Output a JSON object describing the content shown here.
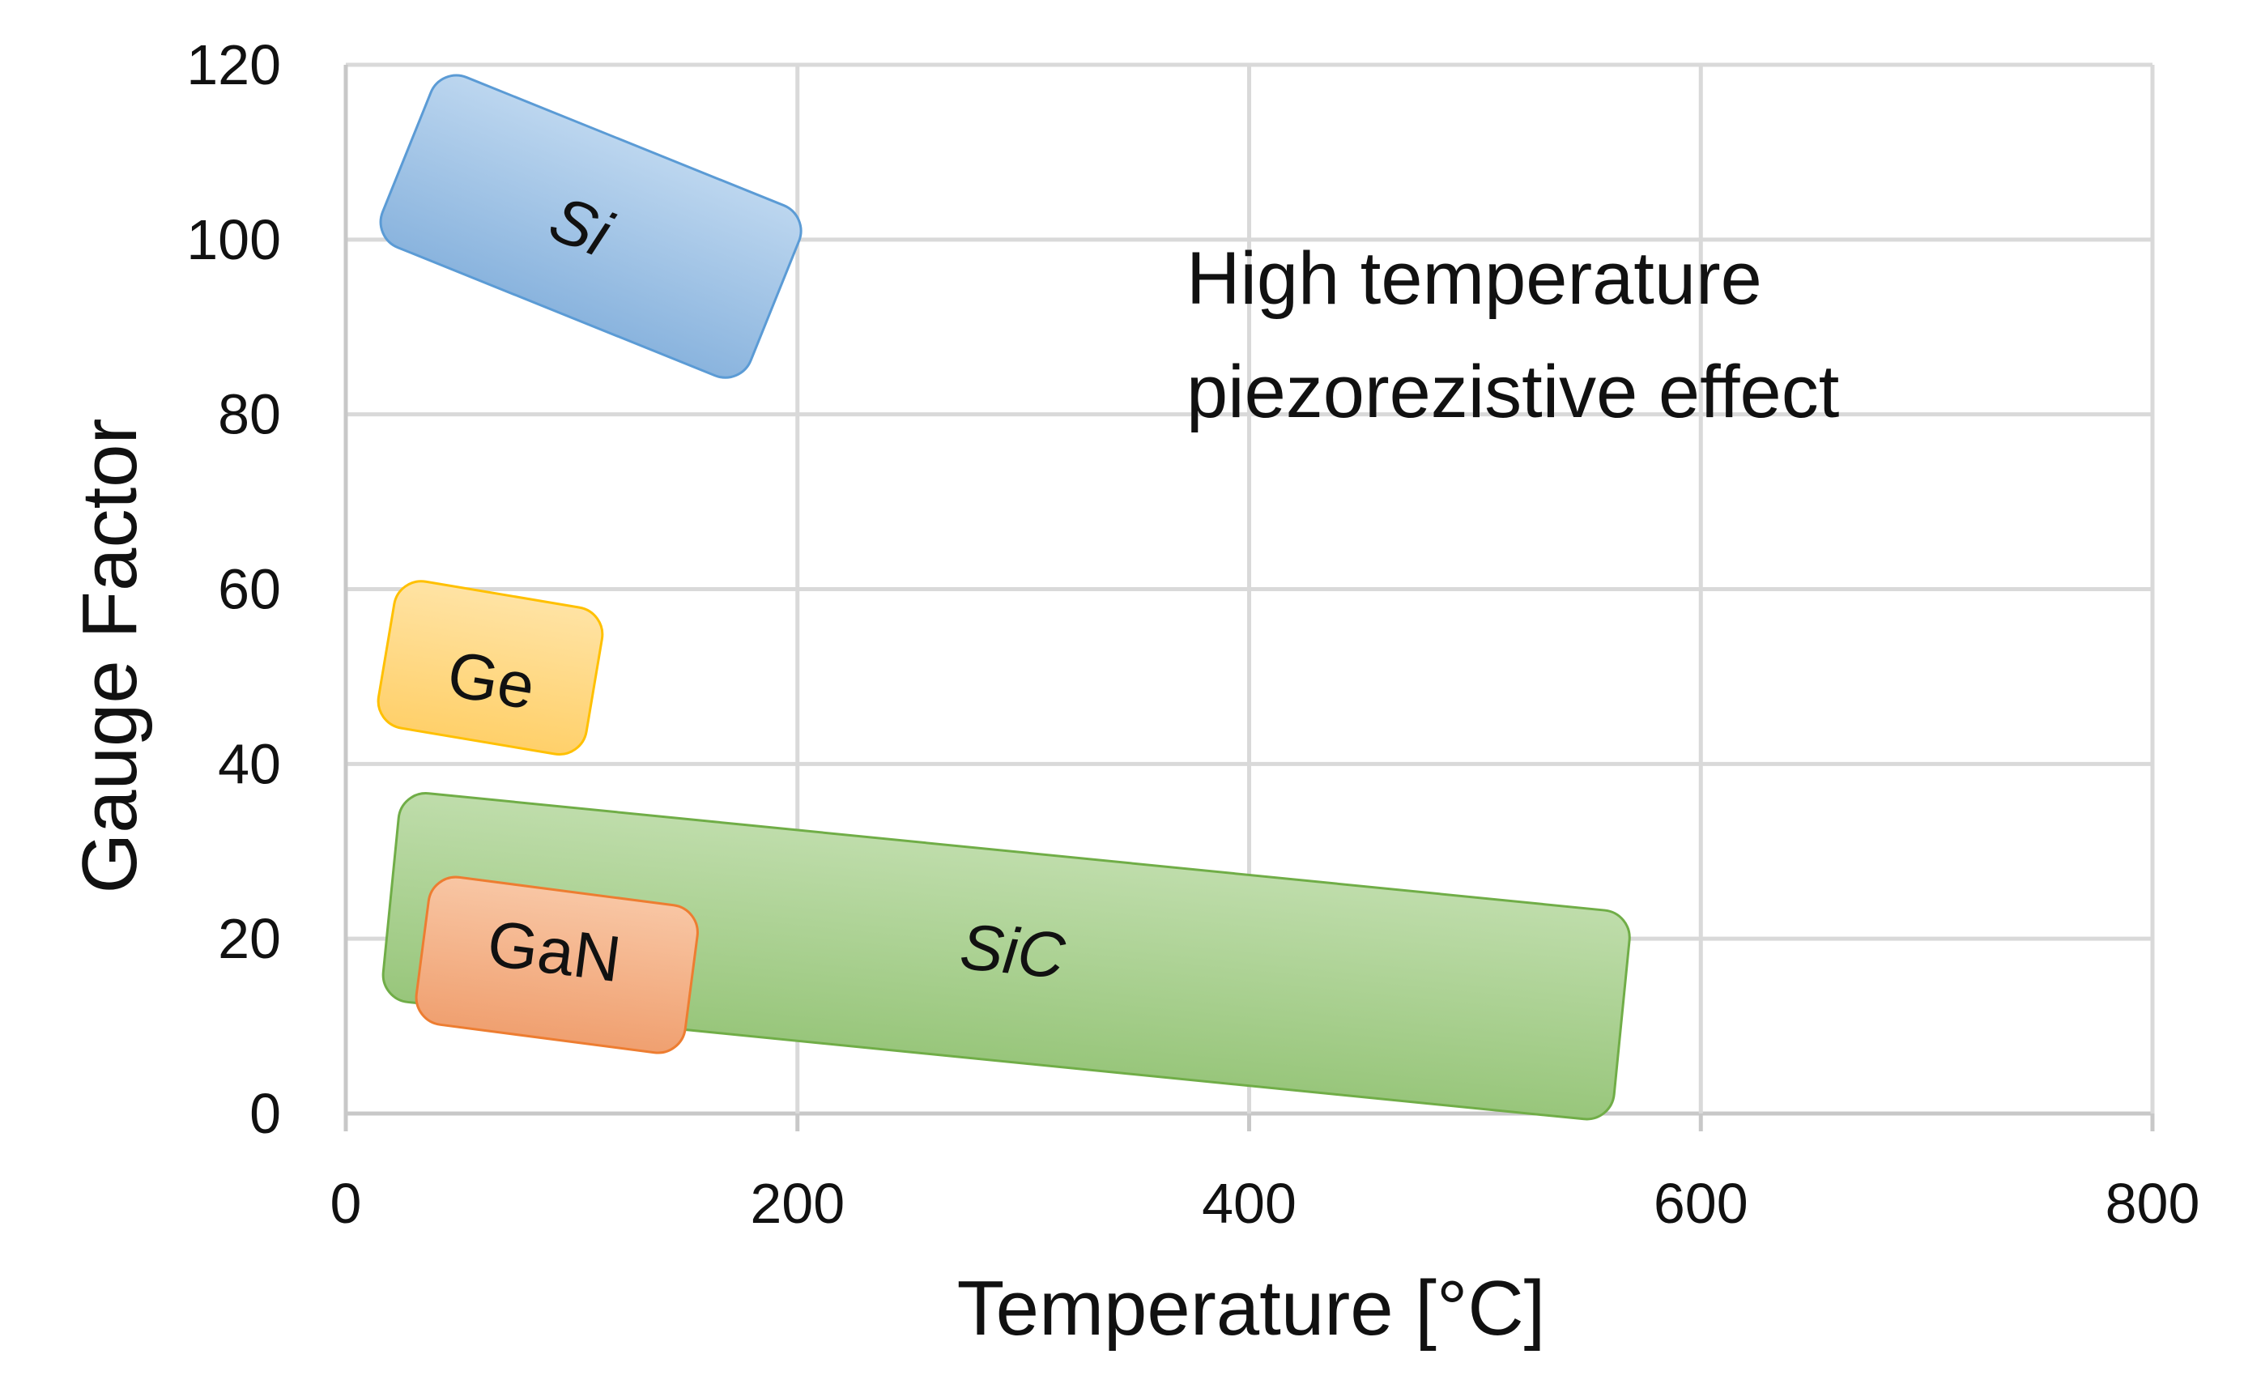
{
  "chart_data": {
    "type": "scatter",
    "title": "",
    "xlabel": "Temperature [°C]",
    "ylabel": "Gauge Factor",
    "xlim": [
      0,
      800
    ],
    "ylim": [
      0,
      120
    ],
    "x_ticks": [
      0,
      200,
      400,
      600,
      800
    ],
    "y_ticks": [
      0,
      20,
      40,
      60,
      80,
      100,
      120
    ],
    "x_tick_labels": [
      "0",
      "200",
      "400",
      "600",
      "800"
    ],
    "y_tick_labels": [
      "0",
      "20",
      "40",
      "60",
      "80",
      "100",
      "120"
    ],
    "grid": true,
    "annotation": {
      "line1": "High temperature",
      "line2": "piezorezistive effect"
    },
    "regions": [
      {
        "name": "SiC",
        "label": "SiC",
        "italic": true,
        "start": [
          20,
          25
        ],
        "end": [
          565,
          11
        ],
        "thickness": 24,
        "color": "#a9d18e",
        "stroke": "#70ad47",
        "label_at": [
          295,
          18
        ]
      },
      {
        "name": "Si",
        "label": "Si",
        "italic": true,
        "start": [
          27,
          110
        ],
        "end": [
          190,
          93
        ],
        "thickness": 21,
        "color": "#9dc3e6",
        "stroke": "#5b9bd5",
        "label_at": [
          103,
          101
        ]
      },
      {
        "name": "Ge",
        "label": "Ge",
        "italic": false,
        "start": [
          18,
          53
        ],
        "end": [
          110,
          49
        ],
        "thickness": 17,
        "color": "#ffd97f",
        "stroke": "#ffc000",
        "label_at": [
          64,
          49
        ]
      },
      {
        "name": "GaN",
        "label": "GaN",
        "italic": false,
        "start": [
          34,
          19
        ],
        "end": [
          153,
          15
        ],
        "thickness": 17,
        "color": "#f4b183",
        "stroke": "#ed7d31",
        "label_at": [
          92,
          18
        ]
      }
    ]
  }
}
